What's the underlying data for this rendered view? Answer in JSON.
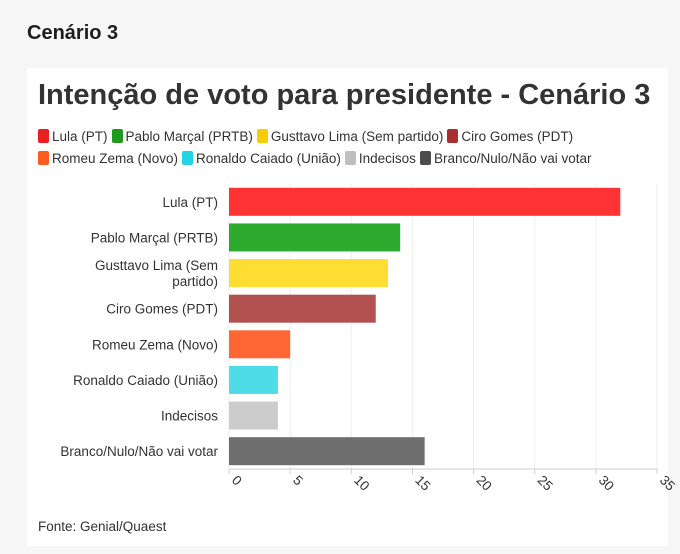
{
  "page": {
    "section_heading": "Cenário 3"
  },
  "chart_data": {
    "type": "bar",
    "orientation": "horizontal",
    "title": "Intenção de voto para presidente - Cenário 3",
    "categories": [
      "Lula (PT)",
      "Pablo Marçal (PRTB)",
      "Gusttavo Lima (Sem partido)",
      "Ciro Gomes (PDT)",
      "Romeu Zema (Novo)",
      "Ronaldo Caiado (União)",
      "Indecisos",
      "Branco/Nulo/Não vai votar"
    ],
    "category_label_lines": [
      [
        "Lula (PT)"
      ],
      [
        "Pablo Marçal (PRTB)"
      ],
      [
        "Gusttavo Lima (Sem",
        "partido)"
      ],
      [
        "Ciro Gomes (PDT)"
      ],
      [
        "Romeu Zema (Novo)"
      ],
      [
        "Ronaldo Caiado (União)"
      ],
      [
        "Indecisos"
      ],
      [
        "Branco/Nulo/Não vai votar"
      ]
    ],
    "values": [
      32,
      14,
      13,
      12,
      5,
      4,
      4,
      16
    ],
    "colors": [
      "#ff3333",
      "#2eaa2e",
      "#ffdd33",
      "#b35151",
      "#ff6633",
      "#4ddce8",
      "#cccccc",
      "#6e6e6e"
    ],
    "xlim": [
      0,
      35
    ],
    "xticks": [
      0,
      5,
      10,
      15,
      20,
      25,
      30,
      35
    ],
    "xlabel": "",
    "ylabel": "",
    "grid": true,
    "legend_position": "top",
    "legend": [
      {
        "label": "Lula (PT)",
        "color": "#e8211e"
      },
      {
        "label": "Pablo Marçal (PRTB)",
        "color": "#1f9a1f"
      },
      {
        "label": "Gusttavo Lima (Sem partido)",
        "color": "#f7cc00"
      },
      {
        "label": "Ciro Gomes (PDT)",
        "color": "#a82f2f"
      },
      {
        "label": "Romeu Zema (Novo)",
        "color": "#ff5a1f"
      },
      {
        "label": "Ronaldo Caiado (União)",
        "color": "#22d4e4"
      },
      {
        "label": "Indecisos",
        "color": "#bfbfbf"
      },
      {
        "label": "Branco/Nulo/Não vai votar",
        "color": "#4d4d4d"
      }
    ]
  },
  "source": "Fonte: Genial/Quaest"
}
